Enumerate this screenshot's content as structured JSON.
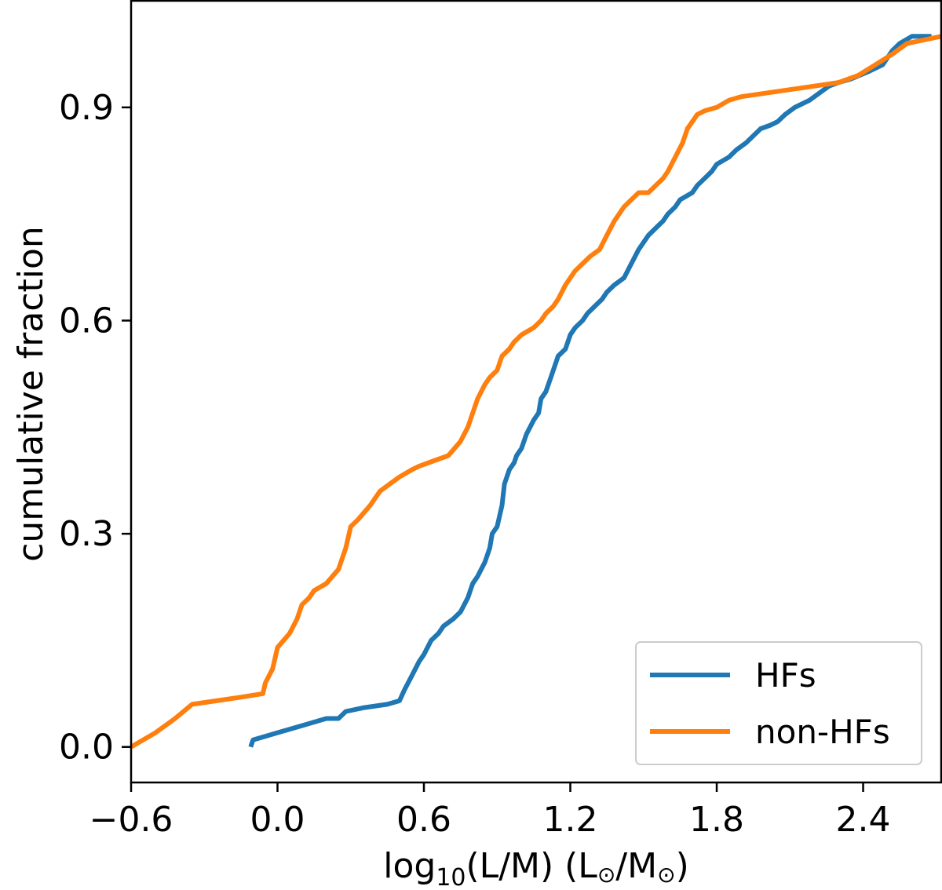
{
  "chart_data": {
    "type": "line",
    "title": "",
    "xlabel": {
      "base": "log",
      "sub": "10",
      "main": "(L/M) (L",
      "sun1": "⊙",
      "mid": "/M",
      "sun2": "⊙",
      "end": ")"
    },
    "ylabel": "cumulative fraction",
    "xlim": [
      -0.6,
      2.72
    ],
    "ylim": [
      -0.05,
      1.05
    ],
    "xticks": [
      -0.6,
      0.0,
      0.6,
      1.2,
      1.8,
      2.4
    ],
    "xtick_labels": [
      "−0.6",
      "0.0",
      "0.6",
      "1.2",
      "1.8",
      "2.4"
    ],
    "yticks": [
      0.0,
      0.3,
      0.6,
      0.9
    ],
    "ytick_labels": [
      "0.0",
      "0.3",
      "0.6",
      "0.9"
    ],
    "legend_position": "bottom-right",
    "series": [
      {
        "name": "HFs",
        "color": "#1f77b4",
        "x": [
          -0.11,
          -0.1,
          0.0,
          0.1,
          0.2,
          0.25,
          0.28,
          0.35,
          0.45,
          0.5,
          0.52,
          0.55,
          0.58,
          0.6,
          0.63,
          0.66,
          0.68,
          0.72,
          0.75,
          0.78,
          0.8,
          0.82,
          0.85,
          0.87,
          0.88,
          0.9,
          0.92,
          0.93,
          0.95,
          0.97,
          0.98,
          1.0,
          1.02,
          1.05,
          1.07,
          1.08,
          1.1,
          1.12,
          1.13,
          1.15,
          1.18,
          1.2,
          1.22,
          1.25,
          1.27,
          1.3,
          1.33,
          1.35,
          1.38,
          1.42,
          1.45,
          1.48,
          1.52,
          1.55,
          1.58,
          1.6,
          1.63,
          1.65,
          1.7,
          1.72,
          1.75,
          1.78,
          1.8,
          1.85,
          1.88,
          1.92,
          1.95,
          1.98,
          2.02,
          2.05,
          2.08,
          2.12,
          2.18,
          2.22,
          2.26,
          2.3,
          2.35,
          2.42,
          2.48,
          2.52,
          2.55,
          2.6,
          2.68
        ],
        "y": [
          0.0,
          0.01,
          0.02,
          0.03,
          0.04,
          0.04,
          0.05,
          0.055,
          0.06,
          0.065,
          0.08,
          0.1,
          0.12,
          0.13,
          0.15,
          0.16,
          0.17,
          0.18,
          0.19,
          0.21,
          0.23,
          0.24,
          0.26,
          0.28,
          0.3,
          0.31,
          0.34,
          0.37,
          0.39,
          0.4,
          0.41,
          0.42,
          0.44,
          0.46,
          0.47,
          0.49,
          0.5,
          0.52,
          0.53,
          0.55,
          0.56,
          0.58,
          0.59,
          0.6,
          0.61,
          0.62,
          0.63,
          0.64,
          0.65,
          0.66,
          0.68,
          0.7,
          0.72,
          0.73,
          0.74,
          0.75,
          0.76,
          0.77,
          0.78,
          0.79,
          0.8,
          0.81,
          0.82,
          0.83,
          0.84,
          0.85,
          0.86,
          0.87,
          0.875,
          0.88,
          0.89,
          0.9,
          0.91,
          0.92,
          0.93,
          0.935,
          0.94,
          0.95,
          0.96,
          0.98,
          0.99,
          1.0,
          1.0
        ]
      },
      {
        "name": "non-HFs",
        "color": "#ff7f0e",
        "x": [
          -0.6,
          -0.5,
          -0.42,
          -0.35,
          -0.25,
          -0.15,
          -0.06,
          -0.05,
          -0.02,
          0.0,
          0.05,
          0.08,
          0.1,
          0.13,
          0.15,
          0.2,
          0.25,
          0.28,
          0.3,
          0.33,
          0.38,
          0.42,
          0.46,
          0.5,
          0.55,
          0.58,
          0.62,
          0.7,
          0.75,
          0.78,
          0.8,
          0.82,
          0.85,
          0.87,
          0.9,
          0.92,
          0.95,
          0.97,
          1.0,
          1.05,
          1.08,
          1.1,
          1.13,
          1.15,
          1.18,
          1.2,
          1.22,
          1.25,
          1.28,
          1.32,
          1.35,
          1.38,
          1.42,
          1.45,
          1.48,
          1.52,
          1.55,
          1.58,
          1.6,
          1.63,
          1.66,
          1.68,
          1.72,
          1.75,
          1.8,
          1.85,
          1.9,
          2.0,
          2.1,
          2.2,
          2.3,
          2.38,
          2.45,
          2.52,
          2.58,
          2.72
        ],
        "y": [
          0.0,
          0.02,
          0.04,
          0.06,
          0.065,
          0.07,
          0.075,
          0.09,
          0.11,
          0.14,
          0.16,
          0.18,
          0.2,
          0.21,
          0.22,
          0.23,
          0.25,
          0.28,
          0.31,
          0.32,
          0.34,
          0.36,
          0.37,
          0.38,
          0.39,
          0.395,
          0.4,
          0.41,
          0.43,
          0.45,
          0.47,
          0.49,
          0.51,
          0.52,
          0.53,
          0.55,
          0.56,
          0.57,
          0.58,
          0.59,
          0.6,
          0.61,
          0.62,
          0.63,
          0.65,
          0.66,
          0.67,
          0.68,
          0.69,
          0.7,
          0.72,
          0.74,
          0.76,
          0.77,
          0.78,
          0.78,
          0.79,
          0.8,
          0.81,
          0.83,
          0.85,
          0.87,
          0.89,
          0.895,
          0.9,
          0.91,
          0.915,
          0.92,
          0.925,
          0.93,
          0.935,
          0.945,
          0.96,
          0.975,
          0.99,
          1.0
        ]
      }
    ]
  }
}
